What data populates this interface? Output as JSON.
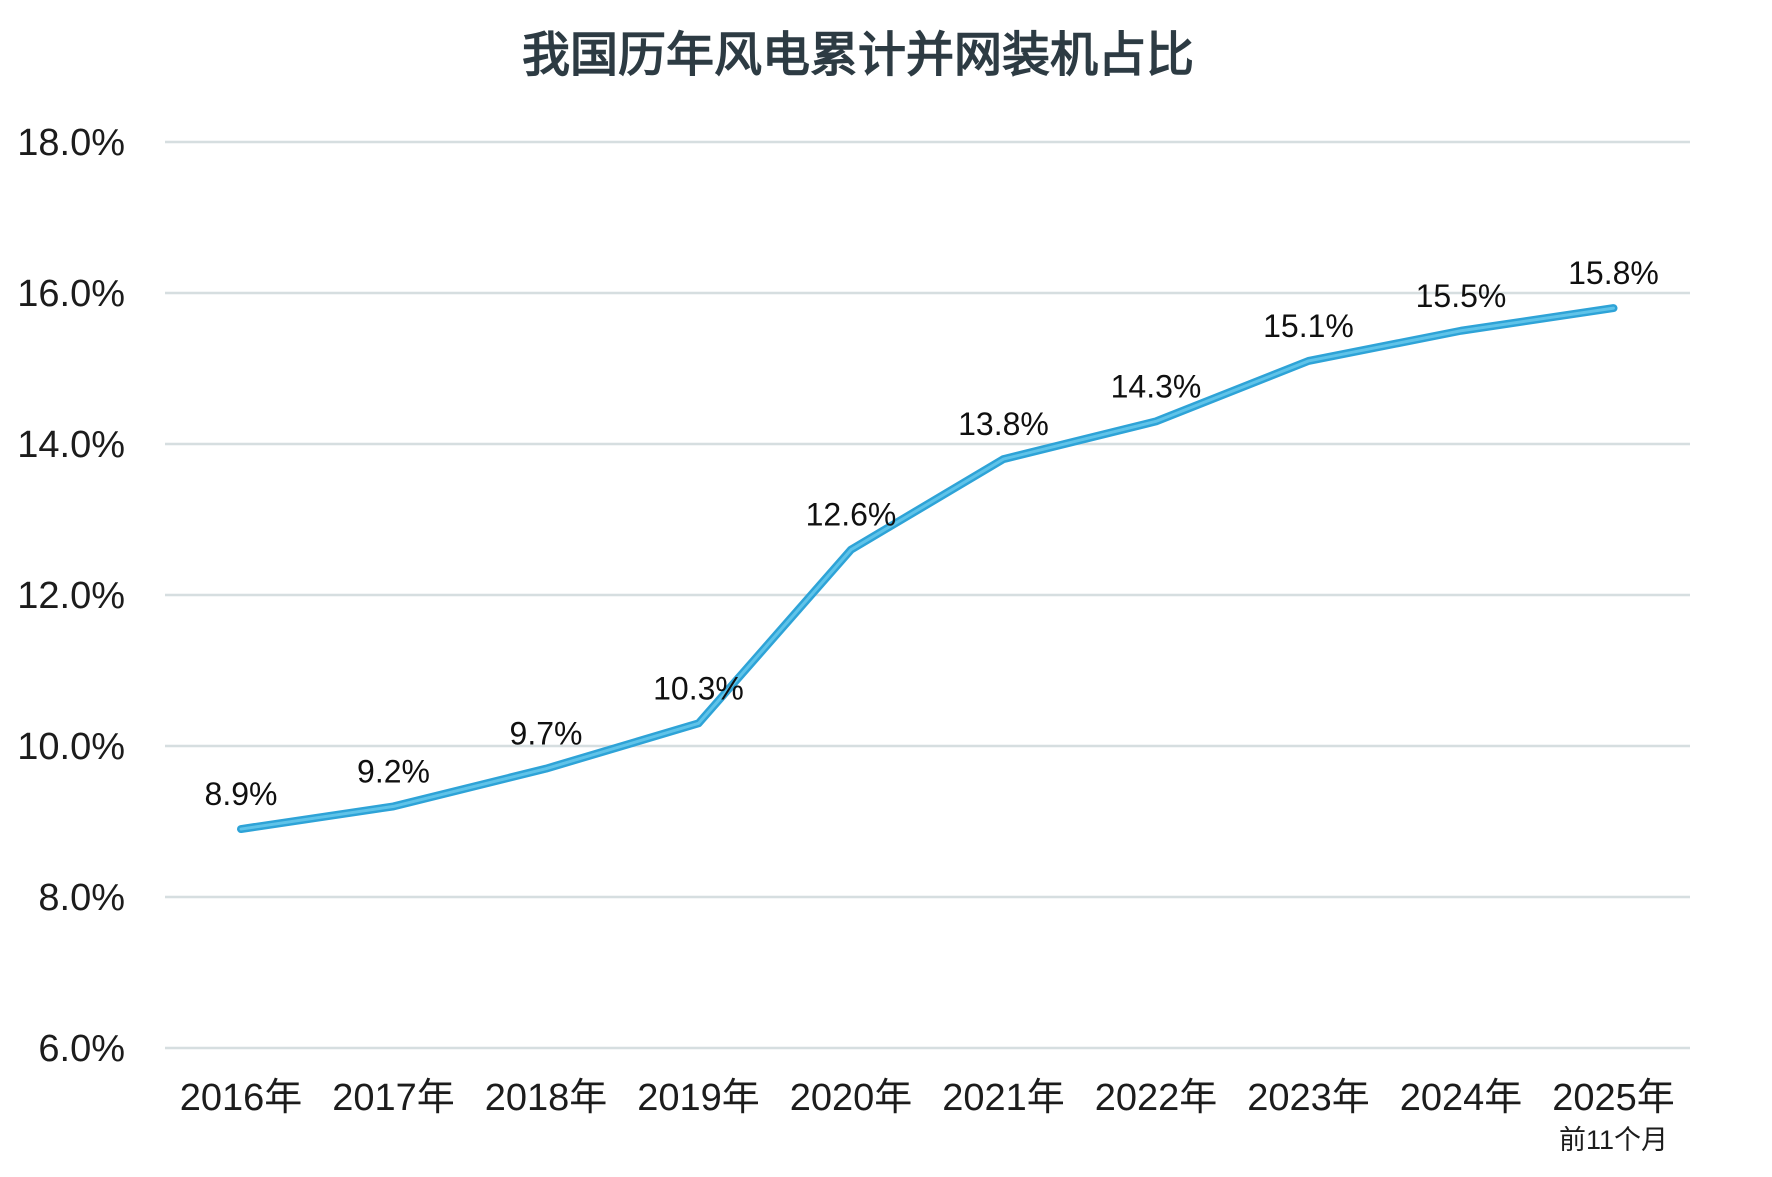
{
  "colors": {
    "background": "#ffffff",
    "title": "#2d3b43",
    "axis_text": "#1c1c1c",
    "data_label": "#101010",
    "gridline": "#d6dee0",
    "line": "#2ea3d7",
    "line_highlight": "#5fc3e9"
  },
  "chart_data": {
    "type": "line",
    "title": "我国历年风电累计并网装机占比",
    "categories": [
      "2016年",
      "2017年",
      "2018年",
      "2019年",
      "2020年",
      "2021年",
      "2022年",
      "2023年",
      "2024年",
      "2025年"
    ],
    "category_note": {
      "category_index": 9,
      "label": "前11个月"
    },
    "values": [
      8.9,
      9.2,
      9.7,
      10.3,
      12.6,
      13.8,
      14.3,
      15.1,
      15.5,
      15.8
    ],
    "data_labels": [
      "8.9%",
      "9.2%",
      "9.7%",
      "10.3%",
      "12.6%",
      "13.8%",
      "14.3%",
      "15.1%",
      "15.5%",
      "15.8%"
    ],
    "y_axis": {
      "ylim": [
        6,
        18
      ],
      "ticks": [
        {
          "value": 18,
          "label": "18.0%"
        },
        {
          "value": 16,
          "label": "16.0%"
        },
        {
          "value": 14,
          "label": "14.0%"
        },
        {
          "value": 12,
          "label": "12.0%"
        },
        {
          "value": 10,
          "label": "10.0%"
        },
        {
          "value": 8,
          "label": "8.0%"
        },
        {
          "value": 6,
          "label": "6.0%"
        }
      ]
    },
    "xlabel": "",
    "ylabel": "",
    "grid": "horizontal",
    "legend": "none",
    "line_color": "#2ea3d7",
    "line_highlight": "#5fc3e9"
  }
}
